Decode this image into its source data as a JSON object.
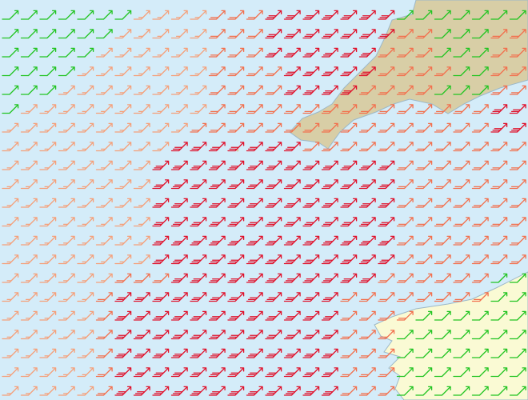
{
  "map": {
    "direction_deg": 45,
    "colors": {
      "10": "#22c422",
      "15": "#f5a07a",
      "20": "#f2704e",
      "30": "#e0102a"
    },
    "wind_speed_rows": [
      [
        10,
        10,
        10,
        10,
        10,
        10,
        10,
        15,
        15,
        15,
        15,
        20,
        20,
        20,
        30,
        30,
        30,
        30,
        30,
        30,
        30,
        10,
        10,
        10,
        10,
        10,
        10,
        10
      ],
      [
        10,
        10,
        10,
        10,
        10,
        10,
        15,
        15,
        15,
        15,
        15,
        20,
        20,
        20,
        30,
        30,
        30,
        30,
        30,
        30,
        30,
        20,
        20,
        10,
        10,
        10,
        20,
        20
      ],
      [
        10,
        10,
        10,
        10,
        10,
        15,
        15,
        15,
        15,
        15,
        15,
        20,
        20,
        20,
        30,
        30,
        30,
        30,
        30,
        30,
        20,
        20,
        20,
        10,
        10,
        10,
        20,
        20
      ],
      [
        10,
        10,
        10,
        10,
        15,
        15,
        15,
        15,
        15,
        15,
        15,
        20,
        20,
        20,
        20,
        30,
        30,
        30,
        30,
        30,
        20,
        20,
        20,
        20,
        10,
        10,
        20,
        20
      ],
      [
        10,
        10,
        10,
        15,
        15,
        15,
        15,
        15,
        15,
        15,
        15,
        20,
        20,
        20,
        20,
        30,
        30,
        30,
        30,
        20,
        20,
        20,
        20,
        10,
        10,
        10,
        20,
        20
      ],
      [
        10,
        15,
        15,
        15,
        15,
        15,
        15,
        15,
        15,
        15,
        15,
        20,
        20,
        20,
        20,
        20,
        20,
        20,
        20,
        20,
        20,
        20,
        20,
        20,
        20,
        20,
        30,
        30
      ],
      [
        15,
        15,
        15,
        15,
        15,
        15,
        15,
        15,
        15,
        15,
        20,
        20,
        20,
        20,
        20,
        20,
        20,
        20,
        20,
        20,
        20,
        20,
        20,
        20,
        20,
        20,
        30,
        30
      ],
      [
        15,
        15,
        15,
        15,
        15,
        15,
        15,
        15,
        15,
        30,
        30,
        30,
        30,
        30,
        30,
        30,
        20,
        20,
        20,
        20,
        20,
        20,
        20,
        20,
        20,
        20,
        20,
        20
      ],
      [
        15,
        15,
        15,
        15,
        15,
        15,
        15,
        15,
        30,
        30,
        30,
        30,
        30,
        30,
        30,
        30,
        30,
        30,
        30,
        30,
        30,
        20,
        20,
        20,
        20,
        20,
        20,
        20
      ],
      [
        15,
        15,
        15,
        15,
        15,
        15,
        15,
        15,
        30,
        30,
        30,
        30,
        30,
        30,
        30,
        30,
        30,
        30,
        30,
        30,
        30,
        20,
        20,
        20,
        20,
        20,
        20,
        20
      ],
      [
        15,
        15,
        15,
        15,
        15,
        15,
        15,
        15,
        30,
        30,
        30,
        30,
        30,
        30,
        30,
        30,
        30,
        30,
        30,
        30,
        30,
        20,
        20,
        20,
        20,
        20,
        20,
        20
      ],
      [
        15,
        15,
        15,
        15,
        15,
        15,
        15,
        15,
        30,
        30,
        30,
        30,
        30,
        30,
        30,
        30,
        30,
        30,
        30,
        30,
        30,
        20,
        20,
        20,
        20,
        20,
        20,
        20
      ],
      [
        15,
        15,
        15,
        15,
        15,
        15,
        15,
        15,
        30,
        30,
        30,
        30,
        30,
        30,
        30,
        30,
        30,
        30,
        30,
        30,
        30,
        20,
        20,
        20,
        20,
        20,
        20,
        20
      ],
      [
        15,
        15,
        15,
        15,
        15,
        15,
        15,
        15,
        30,
        30,
        30,
        30,
        30,
        30,
        30,
        30,
        30,
        30,
        30,
        30,
        30,
        20,
        20,
        20,
        20,
        20,
        20,
        20
      ],
      [
        15,
        15,
        15,
        15,
        15,
        15,
        20,
        20,
        20,
        30,
        30,
        30,
        30,
        30,
        30,
        30,
        30,
        30,
        30,
        30,
        20,
        20,
        20,
        20,
        20,
        20,
        10,
        10
      ],
      [
        15,
        15,
        15,
        15,
        15,
        20,
        30,
        30,
        30,
        30,
        30,
        30,
        30,
        30,
        30,
        30,
        30,
        30,
        20,
        20,
        20,
        20,
        20,
        20,
        20,
        20,
        10,
        10
      ],
      [
        15,
        15,
        15,
        15,
        15,
        20,
        30,
        30,
        30,
        30,
        30,
        30,
        30,
        30,
        30,
        30,
        30,
        30,
        20,
        20,
        20,
        20,
        10,
        10,
        10,
        10,
        10,
        10
      ],
      [
        15,
        15,
        15,
        15,
        15,
        20,
        30,
        30,
        30,
        30,
        30,
        30,
        30,
        30,
        30,
        30,
        30,
        30,
        20,
        20,
        20,
        10,
        10,
        10,
        10,
        10,
        10,
        10
      ],
      [
        15,
        15,
        15,
        15,
        15,
        20,
        30,
        30,
        30,
        30,
        30,
        30,
        30,
        30,
        30,
        30,
        30,
        30,
        20,
        20,
        20,
        10,
        10,
        10,
        10,
        10,
        10,
        10
      ],
      [
        15,
        15,
        15,
        15,
        15,
        20,
        30,
        30,
        30,
        30,
        30,
        30,
        30,
        30,
        30,
        30,
        30,
        30,
        20,
        20,
        20,
        10,
        10,
        10,
        10,
        10,
        10,
        10
      ],
      [
        15,
        15,
        15,
        15,
        15,
        20,
        30,
        30,
        30,
        30,
        30,
        30,
        30,
        30,
        30,
        30,
        30,
        30,
        20,
        20,
        20,
        10,
        10,
        10,
        10,
        10,
        10,
        10
      ]
    ]
  }
}
